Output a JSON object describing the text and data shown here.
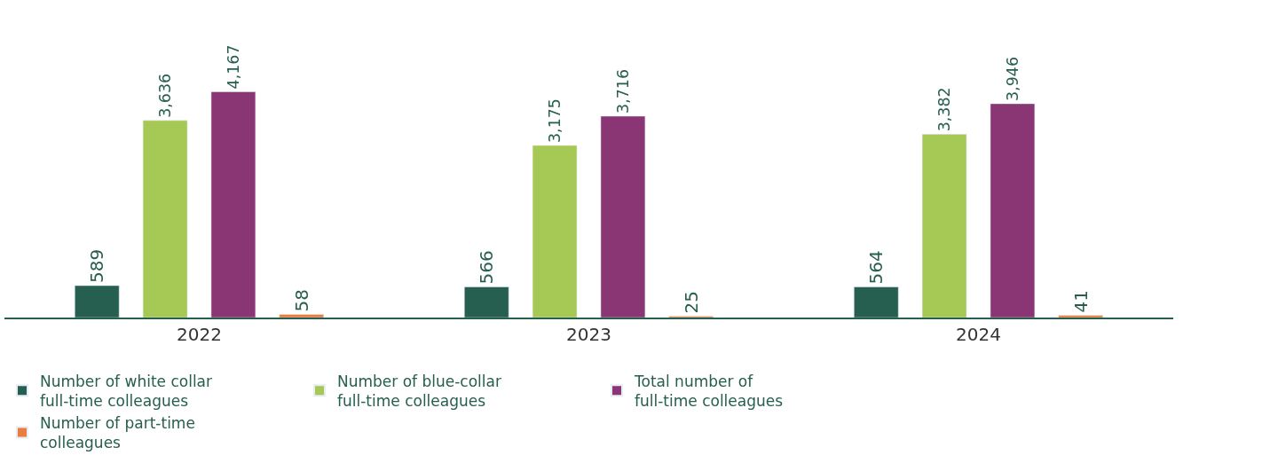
{
  "chart_data": {
    "type": "bar",
    "categories": [
      "2022",
      "2023",
      "2024"
    ],
    "series": [
      {
        "name": "Number of white collar full-time colleagues",
        "color": "#265e4f",
        "values": [
          589,
          566,
          564
        ],
        "value_labels": [
          "589",
          "566",
          "564"
        ]
      },
      {
        "name": "Number of blue-collar full-time colleagues",
        "color": "#a6c955",
        "values": [
          3636,
          3175,
          3382
        ],
        "value_labels": [
          "3,636",
          "3,175",
          "3,382"
        ]
      },
      {
        "name": "Total number of full-time colleagues",
        "color": "#8a3675",
        "values": [
          4167,
          3716,
          3946
        ],
        "value_labels": [
          "4,167",
          "3,716",
          "3,946"
        ]
      },
      {
        "name": "Number of part-time colleagues",
        "color": "#e87d3e",
        "values": [
          58,
          25,
          41
        ],
        "value_labels": [
          "58",
          "25",
          "41"
        ]
      }
    ],
    "legend": "bottom",
    "tick_labels": "x"
  }
}
